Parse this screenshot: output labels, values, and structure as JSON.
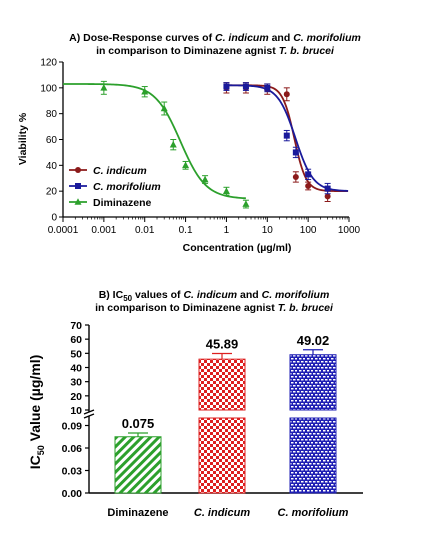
{
  "chart_data": [
    {
      "panel": "A",
      "type": "scatter",
      "title_lines": [
        [
          {
            "t": "A) Dose-Response curves of ",
            "i": false
          },
          {
            "t": "C. indicum",
            "i": true
          },
          {
            "t": " and ",
            "i": false
          },
          {
            "t": "C. morifolium",
            "i": true
          }
        ],
        [
          {
            "t": "in comparison to Diminazene agnist ",
            "i": false
          },
          {
            "t": "T. b. brucei",
            "i": true
          }
        ]
      ],
      "xlabel": "Concentration (µg/ml)",
      "ylabel": "Viability %",
      "xscale": "log",
      "xlim": [
        0.0001,
        1000
      ],
      "ylim": [
        0,
        120
      ],
      "xticks": [
        "0.0001",
        "0.001",
        "0.01",
        "0.1",
        "1",
        "10",
        "100",
        "1000"
      ],
      "yticks": [
        "0",
        "20",
        "40",
        "60",
        "80",
        "100",
        "120"
      ],
      "legend_position": "bottom-left",
      "series": [
        {
          "name": "C. indicum",
          "italic": true,
          "color": "#8b1a1a",
          "marker": "circle",
          "x": [
            1,
            3,
            10,
            30,
            50,
            100,
            300
          ],
          "y": [
            100,
            100,
            99,
            95,
            31,
            24,
            16
          ],
          "err": [
            4,
            4,
            4,
            5,
            4,
            3,
            4
          ],
          "curve": {
            "top": 102,
            "bottom": 20,
            "ec50": 45.89,
            "hill": -3
          }
        },
        {
          "name": "C. morifolium",
          "italic": true,
          "color": "#1a1a9b",
          "marker": "square",
          "x": [
            1,
            3,
            10,
            30,
            50,
            100,
            300
          ],
          "y": [
            101,
            101,
            100,
            63,
            50,
            33,
            22
          ],
          "err": [
            3,
            3,
            3,
            4,
            4,
            4,
            4
          ],
          "curve": {
            "top": 102,
            "bottom": 20,
            "ec50": 49.02,
            "hill": -2
          }
        },
        {
          "name": "Diminazene",
          "italic": false,
          "color": "#2ca02c",
          "marker": "triangle",
          "x": [
            0.001,
            0.01,
            0.03,
            0.05,
            0.1,
            0.3,
            1,
            3
          ],
          "y": [
            100,
            97,
            84,
            56,
            40,
            29,
            20,
            10
          ],
          "err": [
            5,
            4,
            5,
            4,
            3,
            3,
            3,
            3
          ],
          "curve": {
            "top": 103,
            "bottom": 14,
            "ec50": 0.075,
            "hill": -1.4
          }
        }
      ]
    },
    {
      "panel": "B",
      "type": "bar",
      "title_lines": [
        [
          {
            "t": "B) IC",
            "i": false
          },
          {
            "t": "50",
            "i": false,
            "sub": true
          },
          {
            "t": " values of ",
            "i": false
          },
          {
            "t": "C. indicum",
            "i": true
          },
          {
            "t": " and ",
            "i": false
          },
          {
            "t": "C. morifolium",
            "i": true
          }
        ],
        [
          {
            "t": "in comparison to Diminazene agnist ",
            "i": false
          },
          {
            "t": "T. b. brucei",
            "i": true
          }
        ]
      ],
      "ylabel_main": "IC",
      "ylabel_sub": "50",
      "ylabel_rest": " Value (µg/ml)",
      "categories": [
        {
          "label": "Diminazene",
          "italic": false
        },
        {
          "label": "C. indicum",
          "italic": true
        },
        {
          "label": "C. morifolium",
          "italic": true
        }
      ],
      "values": [
        0.075,
        45.89,
        49.02
      ],
      "value_labels": [
        "0.075",
        "45.89",
        "49.02"
      ],
      "errors": [
        0.005,
        4,
        3.5
      ],
      "colors": [
        "#2ca02c",
        "#dd1f1f",
        "#1f1fb4"
      ],
      "patterns": [
        "diagonal",
        "checker",
        "brick"
      ],
      "broken_axis": true,
      "lower_segment": {
        "ylim": [
          0,
          0.1
        ],
        "ticks": [
          "0.00",
          "0.03",
          "0.06",
          "0.09"
        ]
      },
      "upper_segment": {
        "ylim": [
          10,
          70
        ],
        "ticks": [
          "10",
          "20",
          "30",
          "40",
          "50",
          "60",
          "70"
        ]
      }
    }
  ]
}
